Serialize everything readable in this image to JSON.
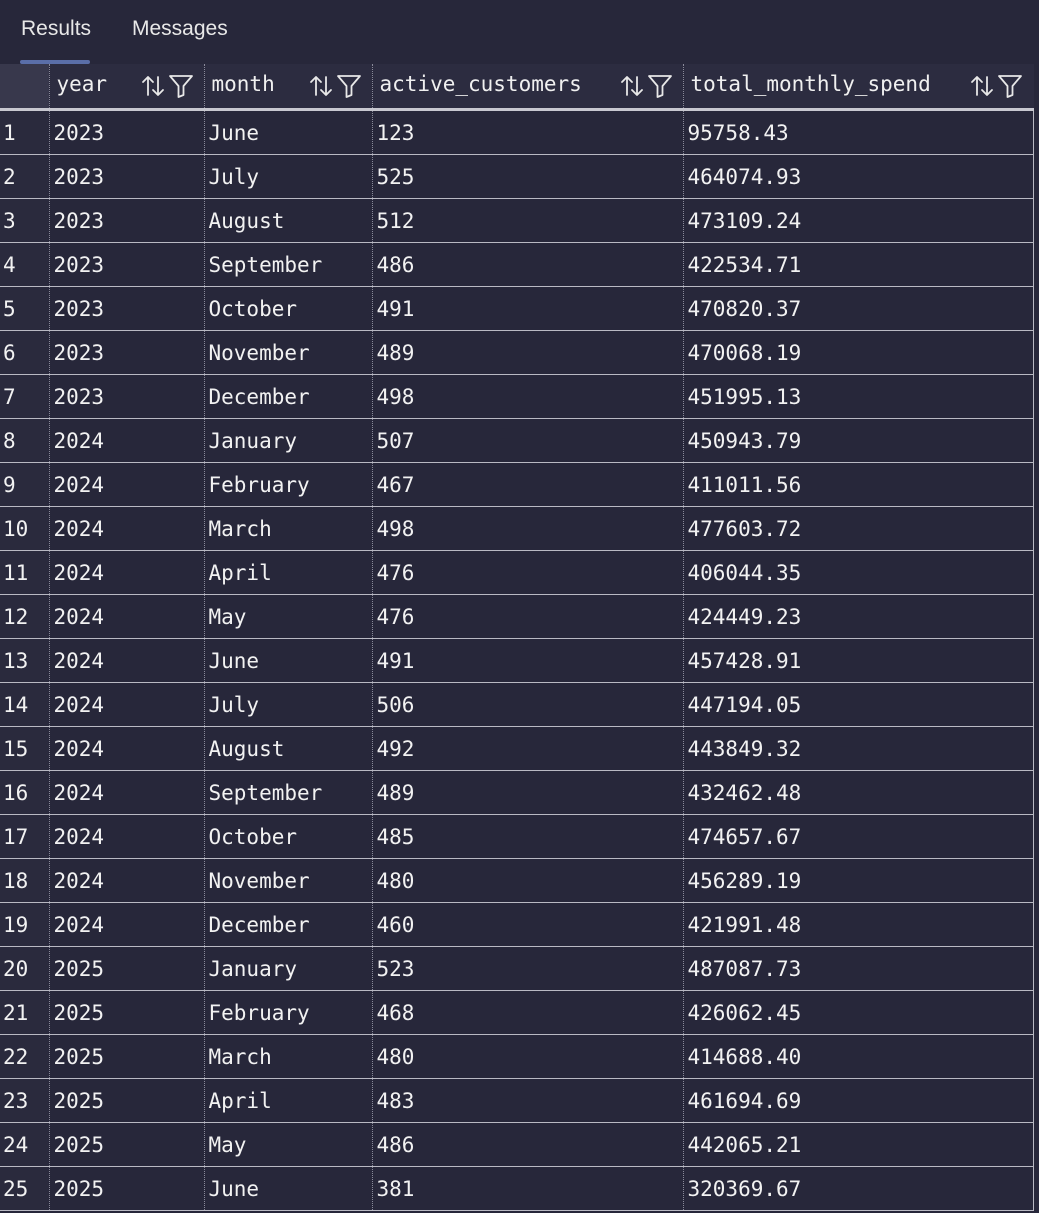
{
  "tabs": [
    {
      "label": "Results",
      "active": true
    },
    {
      "label": "Messages",
      "active": false
    }
  ],
  "columns": [
    "year",
    "month",
    "active_customers",
    "total_monthly_spend"
  ],
  "rows": [
    {
      "n": "1",
      "year": "2023",
      "month": "June",
      "active_customers": "123",
      "total_monthly_spend": "95758.43"
    },
    {
      "n": "2",
      "year": "2023",
      "month": "July",
      "active_customers": "525",
      "total_monthly_spend": "464074.93"
    },
    {
      "n": "3",
      "year": "2023",
      "month": "August",
      "active_customers": "512",
      "total_monthly_spend": "473109.24"
    },
    {
      "n": "4",
      "year": "2023",
      "month": "September",
      "active_customers": "486",
      "total_monthly_spend": "422534.71"
    },
    {
      "n": "5",
      "year": "2023",
      "month": "October",
      "active_customers": "491",
      "total_monthly_spend": "470820.37"
    },
    {
      "n": "6",
      "year": "2023",
      "month": "November",
      "active_customers": "489",
      "total_monthly_spend": "470068.19"
    },
    {
      "n": "7",
      "year": "2023",
      "month": "December",
      "active_customers": "498",
      "total_monthly_spend": "451995.13"
    },
    {
      "n": "8",
      "year": "2024",
      "month": "January",
      "active_customers": "507",
      "total_monthly_spend": "450943.79"
    },
    {
      "n": "9",
      "year": "2024",
      "month": "February",
      "active_customers": "467",
      "total_monthly_spend": "411011.56"
    },
    {
      "n": "10",
      "year": "2024",
      "month": "March",
      "active_customers": "498",
      "total_monthly_spend": "477603.72"
    },
    {
      "n": "11",
      "year": "2024",
      "month": "April",
      "active_customers": "476",
      "total_monthly_spend": "406044.35"
    },
    {
      "n": "12",
      "year": "2024",
      "month": "May",
      "active_customers": "476",
      "total_monthly_spend": "424449.23"
    },
    {
      "n": "13",
      "year": "2024",
      "month": "June",
      "active_customers": "491",
      "total_monthly_spend": "457428.91"
    },
    {
      "n": "14",
      "year": "2024",
      "month": "July",
      "active_customers": "506",
      "total_monthly_spend": "447194.05"
    },
    {
      "n": "15",
      "year": "2024",
      "month": "August",
      "active_customers": "492",
      "total_monthly_spend": "443849.32"
    },
    {
      "n": "16",
      "year": "2024",
      "month": "September",
      "active_customers": "489",
      "total_monthly_spend": "432462.48"
    },
    {
      "n": "17",
      "year": "2024",
      "month": "October",
      "active_customers": "485",
      "total_monthly_spend": "474657.67"
    },
    {
      "n": "18",
      "year": "2024",
      "month": "November",
      "active_customers": "480",
      "total_monthly_spend": "456289.19"
    },
    {
      "n": "19",
      "year": "2024",
      "month": "December",
      "active_customers": "460",
      "total_monthly_spend": "421991.48"
    },
    {
      "n": "20",
      "year": "2025",
      "month": "January",
      "active_customers": "523",
      "total_monthly_spend": "487087.73"
    },
    {
      "n": "21",
      "year": "2025",
      "month": "February",
      "active_customers": "468",
      "total_monthly_spend": "426062.45"
    },
    {
      "n": "22",
      "year": "2025",
      "month": "March",
      "active_customers": "480",
      "total_monthly_spend": "414688.40"
    },
    {
      "n": "23",
      "year": "2025",
      "month": "April",
      "active_customers": "483",
      "total_monthly_spend": "461694.69"
    },
    {
      "n": "24",
      "year": "2025",
      "month": "May",
      "active_customers": "486",
      "total_monthly_spend": "442065.21"
    },
    {
      "n": "25",
      "year": "2025",
      "month": "June",
      "active_customers": "381",
      "total_monthly_spend": "320369.67"
    }
  ],
  "icons": {
    "sort": "sort-arrows-icon",
    "filter": "filter-funnel-icon"
  },
  "colors": {
    "background": "#27273a",
    "tab_underline": "#5a6ea8",
    "text": "#f2f2f2"
  }
}
